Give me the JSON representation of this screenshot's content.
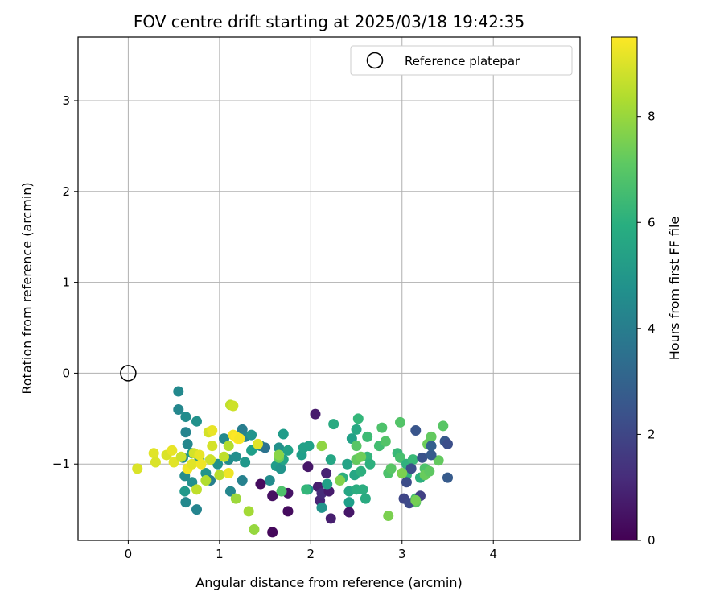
{
  "chart_data": {
    "type": "scatter",
    "title": "FOV centre drift starting at 2025/03/18 19:42:35",
    "xlabel": "Angular distance from reference (arcmin)",
    "ylabel": "Rotation from reference (arcmin)",
    "xlim": [
      -0.55,
      4.95
    ],
    "ylim": [
      -1.84,
      3.7
    ],
    "xticks": [
      0,
      1,
      2,
      3,
      4
    ],
    "xtick_labels": [
      "0",
      "1",
      "2",
      "3",
      "4"
    ],
    "yticks": [
      -1,
      0,
      1,
      2,
      3
    ],
    "ytick_labels": [
      "−1",
      "0",
      "1",
      "2",
      "3"
    ],
    "grid": true,
    "legend": {
      "position": "top-right",
      "entries": [
        {
          "label": "Reference platepar",
          "marker": "open-circle"
        }
      ]
    },
    "reference_point": {
      "x": 0,
      "y": 0
    },
    "colorbar": {
      "label": "Hours from first FF file",
      "range": [
        0,
        9.5
      ],
      "ticks": [
        0,
        2,
        4,
        6,
        8
      ],
      "tick_labels": [
        "0",
        "2",
        "4",
        "6",
        "8"
      ],
      "colormap": "viridis"
    },
    "points": [
      [
        0.55,
        -0.2,
        4.5
      ],
      [
        0.55,
        -0.4,
        4.4
      ],
      [
        0.63,
        -0.48,
        4.6
      ],
      [
        0.63,
        -0.65,
        4.3
      ],
      [
        0.65,
        -0.78,
        4.4
      ],
      [
        0.75,
        -0.53,
        4.8
      ],
      [
        0.6,
        -0.93,
        4.5
      ],
      [
        0.62,
        -1.13,
        4.6
      ],
      [
        0.62,
        -1.3,
        5.1
      ],
      [
        0.63,
        -1.42,
        4.5
      ],
      [
        0.7,
        -1.2,
        4.7
      ],
      [
        0.75,
        -1.5,
        4.3
      ],
      [
        0.7,
        -0.88,
        5.2
      ],
      [
        0.78,
        -0.95,
        5.0
      ],
      [
        0.85,
        -1.1,
        4.9
      ],
      [
        0.9,
        -1.18,
        4.1
      ],
      [
        0.98,
        -1.0,
        4.8
      ],
      [
        1.05,
        -0.72,
        4.5
      ],
      [
        1.1,
        -0.95,
        4.6
      ],
      [
        1.12,
        -1.3,
        4.4
      ],
      [
        1.18,
        -0.92,
        4.7
      ],
      [
        1.25,
        -0.62,
        4.0
      ],
      [
        1.28,
        -0.7,
        4.3
      ],
      [
        1.28,
        -0.98,
        5.0
      ],
      [
        1.25,
        -1.18,
        4.2
      ],
      [
        1.35,
        -0.68,
        4.9
      ],
      [
        1.35,
        -0.85,
        5.3
      ],
      [
        1.45,
        -0.8,
        4.3
      ],
      [
        1.5,
        -0.82,
        3.6
      ],
      [
        1.55,
        -1.18,
        4.6
      ],
      [
        1.62,
        -1.02,
        5.2
      ],
      [
        1.65,
        -0.82,
        4.8
      ],
      [
        1.67,
        -1.05,
        4.9
      ],
      [
        1.7,
        -0.67,
        5.2
      ],
      [
        1.7,
        -0.95,
        5.5
      ],
      [
        1.75,
        -0.85,
        5.4
      ],
      [
        1.9,
        -0.9,
        5.3
      ],
      [
        1.92,
        -0.82,
        5.4
      ],
      [
        1.97,
        -1.28,
        4.8
      ],
      [
        1.98,
        -0.8,
        5.4
      ],
      [
        1.45,
        -1.22,
        0.3
      ],
      [
        1.58,
        -1.35,
        0.4
      ],
      [
        1.58,
        -1.75,
        0.2
      ],
      [
        1.75,
        -1.52,
        0.3
      ],
      [
        1.75,
        -1.32,
        0.5
      ],
      [
        1.97,
        -1.03,
        0.6
      ],
      [
        2.05,
        -0.45,
        0.7
      ],
      [
        2.08,
        -1.25,
        0.8
      ],
      [
        2.1,
        -1.4,
        1.0
      ],
      [
        2.12,
        -1.32,
        1.2
      ],
      [
        2.17,
        -1.1,
        0.9
      ],
      [
        2.2,
        -1.3,
        0.7
      ],
      [
        2.22,
        -1.6,
        0.8
      ],
      [
        2.42,
        -1.53,
        0.6
      ],
      [
        2.12,
        -1.48,
        4.9
      ],
      [
        2.18,
        -1.22,
        5.4
      ],
      [
        2.22,
        -0.95,
        5.6
      ],
      [
        2.25,
        -0.56,
        5.8
      ],
      [
        2.35,
        -1.15,
        6.0
      ],
      [
        2.4,
        -1.0,
        5.5
      ],
      [
        2.42,
        -1.3,
        5.6
      ],
      [
        2.42,
        -1.42,
        5.3
      ],
      [
        2.45,
        -0.72,
        5.4
      ],
      [
        2.48,
        -1.12,
        5.6
      ],
      [
        2.5,
        -1.28,
        5.9
      ],
      [
        2.5,
        -0.62,
        5.7
      ],
      [
        2.52,
        -0.5,
        6.3
      ],
      [
        2.55,
        -1.08,
        6.0
      ],
      [
        2.57,
        -1.28,
        5.9
      ],
      [
        2.6,
        -1.38,
        5.8
      ],
      [
        2.62,
        -0.92,
        6.2
      ],
      [
        2.62,
        -0.7,
        6.5
      ],
      [
        2.65,
        -1.0,
        6.0
      ],
      [
        2.75,
        -0.8,
        6.6
      ],
      [
        2.78,
        -0.6,
        6.8
      ],
      [
        2.82,
        -0.75,
        6.9
      ],
      [
        2.5,
        -0.8,
        7.0
      ],
      [
        2.5,
        -0.95,
        7.2
      ],
      [
        2.55,
        -0.92,
        7.4
      ],
      [
        2.85,
        -1.1,
        6.8
      ],
      [
        2.88,
        -1.05,
        7.0
      ],
      [
        2.95,
        -0.88,
        6.4
      ],
      [
        2.98,
        -0.54,
        6.9
      ],
      [
        2.98,
        -0.93,
        6.7
      ],
      [
        3.05,
        -1.12,
        6.2
      ],
      [
        3.05,
        -1.0,
        6.1
      ],
      [
        3.12,
        -0.95,
        6.4
      ],
      [
        3.15,
        -1.38,
        6.6
      ],
      [
        3.15,
        -1.42,
        7.0
      ],
      [
        3.2,
        -1.15,
        6.0
      ],
      [
        3.25,
        -1.05,
        6.8
      ],
      [
        3.25,
        -1.12,
        7.3
      ],
      [
        3.28,
        -0.78,
        7.4
      ],
      [
        3.3,
        -1.08,
        7.1
      ],
      [
        3.32,
        -0.7,
        7.2
      ],
      [
        3.4,
        -0.96,
        7.2
      ],
      [
        3.45,
        -0.58,
        7.0
      ],
      [
        3.15,
        -0.63,
        2.5
      ],
      [
        3.02,
        -1.38,
        2.0
      ],
      [
        3.05,
        -1.2,
        2.2
      ],
      [
        3.08,
        -1.43,
        2.1
      ],
      [
        3.1,
        -1.05,
        2.3
      ],
      [
        3.2,
        -1.35,
        1.8
      ],
      [
        3.22,
        -0.93,
        2.4
      ],
      [
        3.32,
        -0.9,
        2.7
      ],
      [
        3.32,
        -0.8,
        2.9
      ],
      [
        3.47,
        -0.75,
        2.6
      ],
      [
        3.5,
        -0.78,
        2.3
      ],
      [
        3.5,
        -1.15,
        2.7
      ],
      [
        2.85,
        -1.57,
        7.6
      ],
      [
        1.65,
        -0.93,
        7.3
      ],
      [
        1.68,
        -1.3,
        6.8
      ],
      [
        2.12,
        -0.8,
        7.9
      ],
      [
        2.32,
        -1.18,
        7.7
      ],
      [
        1.95,
        -1.28,
        6.3
      ],
      [
        0.1,
        -1.05,
        9.0
      ],
      [
        0.28,
        -0.88,
        9.1
      ],
      [
        0.3,
        -0.98,
        9.0
      ],
      [
        0.42,
        -0.9,
        9.0
      ],
      [
        0.48,
        -0.85,
        9.2
      ],
      [
        0.5,
        -0.98,
        9.1
      ],
      [
        0.58,
        -0.92,
        8.8
      ],
      [
        0.65,
        -1.05,
        9.3
      ],
      [
        0.7,
        -1.0,
        9.1
      ],
      [
        0.72,
        -0.88,
        8.9
      ],
      [
        0.75,
        -1.28,
        8.6
      ],
      [
        0.78,
        -0.9,
        9.2
      ],
      [
        0.8,
        -1.0,
        9.3
      ],
      [
        0.85,
        -1.18,
        8.4
      ],
      [
        0.88,
        -0.65,
        8.9
      ],
      [
        0.9,
        -0.95,
        8.8
      ],
      [
        0.92,
        -0.8,
        8.9
      ],
      [
        0.92,
        -0.63,
        9.2
      ],
      [
        1.0,
        -1.12,
        8.5
      ],
      [
        1.05,
        -0.92,
        8.6
      ],
      [
        1.1,
        -1.1,
        9.3
      ],
      [
        1.1,
        -0.8,
        8.4
      ],
      [
        1.12,
        -0.35,
        8.6
      ],
      [
        1.15,
        -0.36,
        8.8
      ],
      [
        1.15,
        -0.68,
        9.4
      ],
      [
        1.18,
        -0.7,
        9.5
      ],
      [
        1.2,
        -0.72,
        9.5
      ],
      [
        1.22,
        -0.72,
        9.4
      ],
      [
        1.18,
        -1.38,
        8.1
      ],
      [
        1.32,
        -1.52,
        8.2
      ],
      [
        1.38,
        -1.72,
        8.0
      ],
      [
        1.42,
        -0.78,
        9.1
      ],
      [
        3.15,
        -1.4,
        7.5
      ],
      [
        3.0,
        -1.1,
        7.6
      ],
      [
        1.65,
        -0.9,
        7.8
      ]
    ]
  }
}
